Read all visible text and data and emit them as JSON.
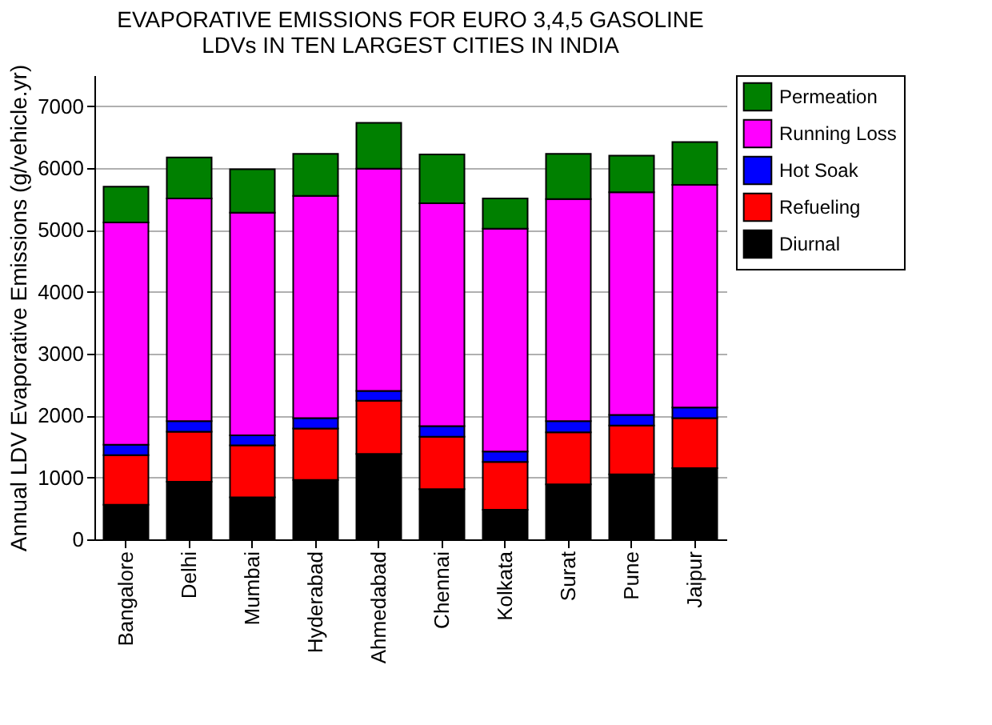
{
  "chart_data": {
    "type": "bar",
    "stacked": true,
    "title": "EVAPORATIVE EMISSIONS FOR EURO 3,4,5 GASOLINE\nLDVs IN TEN LARGEST CITIES IN INDIA",
    "ylabel": "Annual LDV Evaporative Emissions (g/vehicle.yr)",
    "categories": [
      "Bangalore",
      "Delhi",
      "Mumbai",
      "Hyderabad",
      "Ahmedabad",
      "Chennai",
      "Kolkata",
      "Surat",
      "Pune",
      "Jaipur"
    ],
    "series": [
      {
        "name": "Diurnal",
        "color": "#000000",
        "values": [
          560,
          930,
          680,
          960,
          1380,
          810,
          480,
          890,
          1050,
          1150
        ]
      },
      {
        "name": "Refueling",
        "color": "#ff0000",
        "values": [
          800,
          810,
          840,
          830,
          860,
          850,
          770,
          840,
          790,
          810
        ]
      },
      {
        "name": "Hot Soak",
        "color": "#0000ff",
        "values": [
          170,
          170,
          160,
          170,
          160,
          170,
          170,
          180,
          170,
          170
        ]
      },
      {
        "name": "Running Loss",
        "color": "#ff00ff",
        "values": [
          3590,
          3600,
          3600,
          3590,
          3590,
          3600,
          3600,
          3590,
          3600,
          3600
        ]
      },
      {
        "name": "Permeation",
        "color": "#008000",
        "values": [
          580,
          660,
          700,
          680,
          740,
          790,
          490,
          730,
          590,
          690
        ]
      }
    ],
    "ylim": [
      0,
      7500
    ],
    "yticks": [
      0,
      1000,
      2000,
      3000,
      4000,
      5000,
      6000,
      7000
    ],
    "grid": "y",
    "legend": "top right"
  }
}
